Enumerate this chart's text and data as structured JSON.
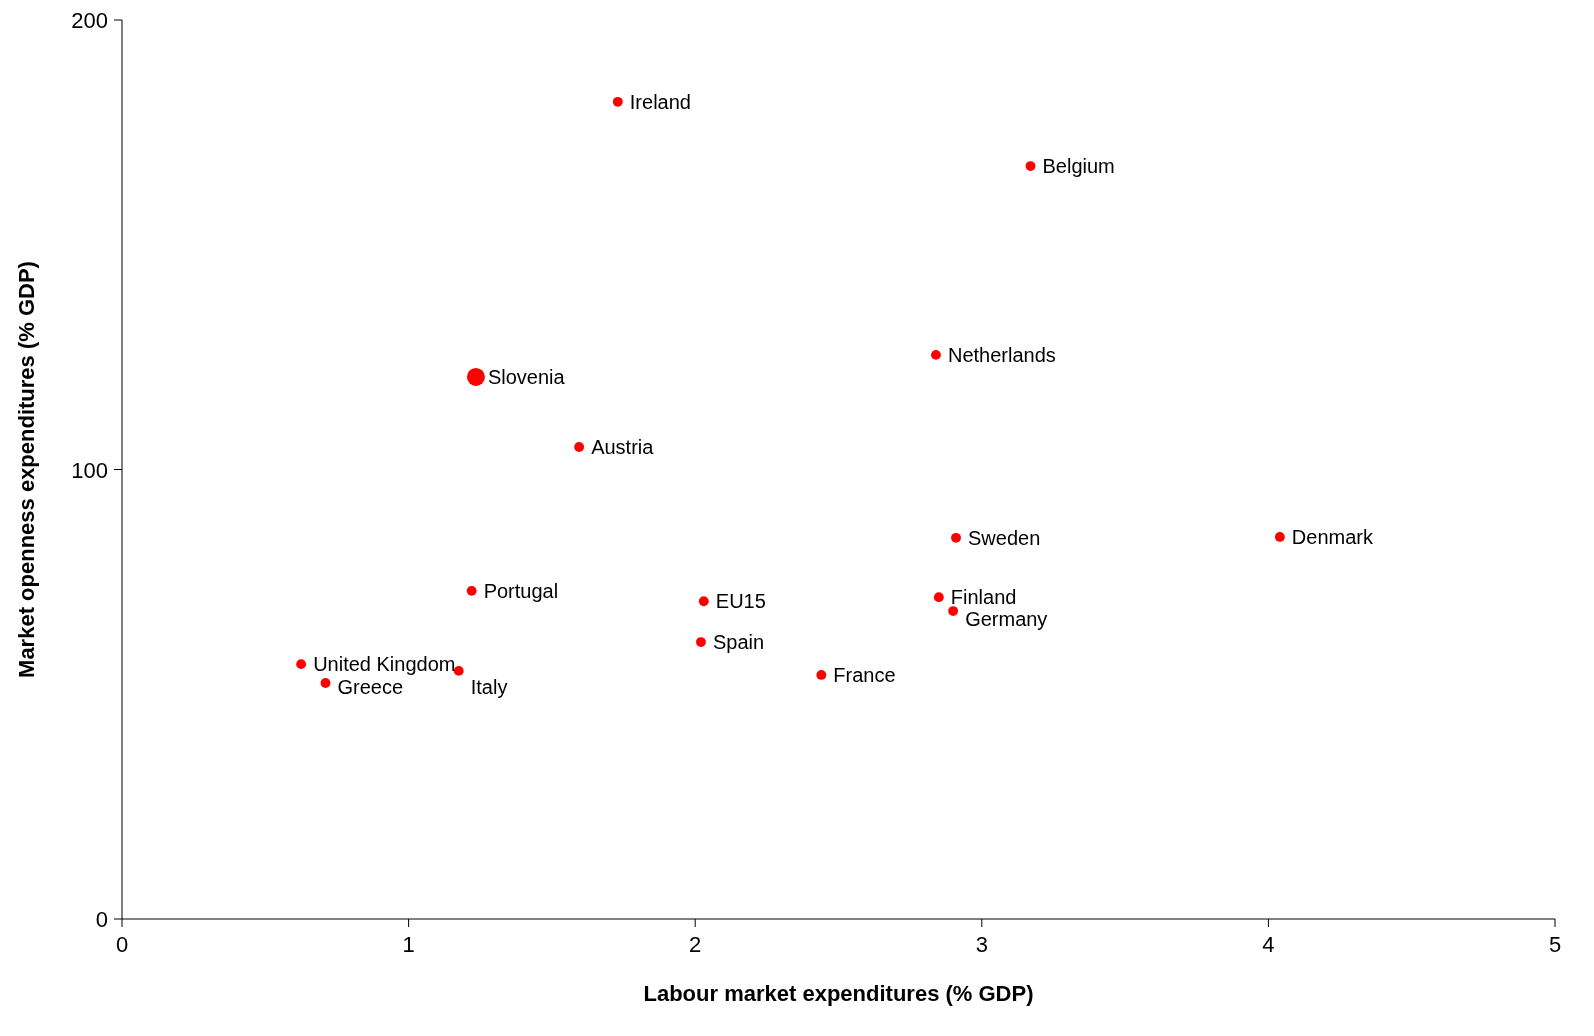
{
  "chart_data": {
    "type": "bubble",
    "xlabel": "Labour market expenditures (% GDP)",
    "ylabel": "Market openness expenditures (% GDP)",
    "xlim": [
      0,
      5
    ],
    "xticks": [
      0,
      1,
      2,
      3,
      4,
      5
    ],
    "ylim": [
      0,
      200
    ],
    "yticks": [
      0,
      100,
      200
    ],
    "grid": false,
    "series": [
      {
        "color": "#ff0000",
        "x": [
          1.73,
          3.17,
          1.235,
          2.84,
          1.595,
          2.91,
          4.04,
          1.22,
          2.03,
          2.85,
          2.9,
          2.02,
          2.44,
          0.625,
          1.175,
          0.71
        ],
        "values": [
          181.8,
          167.5,
          120.6,
          125.5,
          105.0,
          84.8,
          85.0,
          73.0,
          70.7,
          71.6,
          68.5,
          61.6,
          54.3,
          56.7,
          55.2,
          52.5
        ],
        "sizes": [
          0.3,
          0.3,
          1,
          0.3,
          0.3,
          0.3,
          0.3,
          0.3,
          0.3,
          0.3,
          0.3,
          0.3,
          0.3,
          0.3,
          0.3,
          0.3
        ]
      }
    ],
    "annotations": [
      {
        "text": "Ireland",
        "x": 1.73,
        "y": 181.8
      },
      {
        "text": "Belgium",
        "x": 3.17,
        "y": 167.5
      },
      {
        "text": "Slovenia",
        "x": 1.235,
        "y": 120.6
      },
      {
        "text": "Netherlands",
        "x": 2.84,
        "y": 125.5
      },
      {
        "text": "Austria",
        "x": 1.595,
        "y": 105.0
      },
      {
        "text": "Sweden",
        "x": 2.91,
        "y": 84.8
      },
      {
        "text": "Denmark",
        "x": 4.04,
        "y": 85.0
      },
      {
        "text": "Portugal",
        "x": 1.22,
        "y": 73.0
      },
      {
        "text": "EU15",
        "x": 2.03,
        "y": 70.7
      },
      {
        "text": "Finland",
        "x": 2.85,
        "y": 71.6
      },
      {
        "text": "Germany",
        "x": 2.9,
        "y": 68.5
      },
      {
        "text": "Spain",
        "x": 2.02,
        "y": 61.6
      },
      {
        "text": "France",
        "x": 2.44,
        "y": 54.3
      },
      {
        "text": "United Kingdom",
        "x": 0.625,
        "y": 56.7
      },
      {
        "text": "Italy",
        "x": 1.175,
        "y": 55.2
      },
      {
        "text": "Greece",
        "x": 0.71,
        "y": 52.5
      }
    ]
  }
}
